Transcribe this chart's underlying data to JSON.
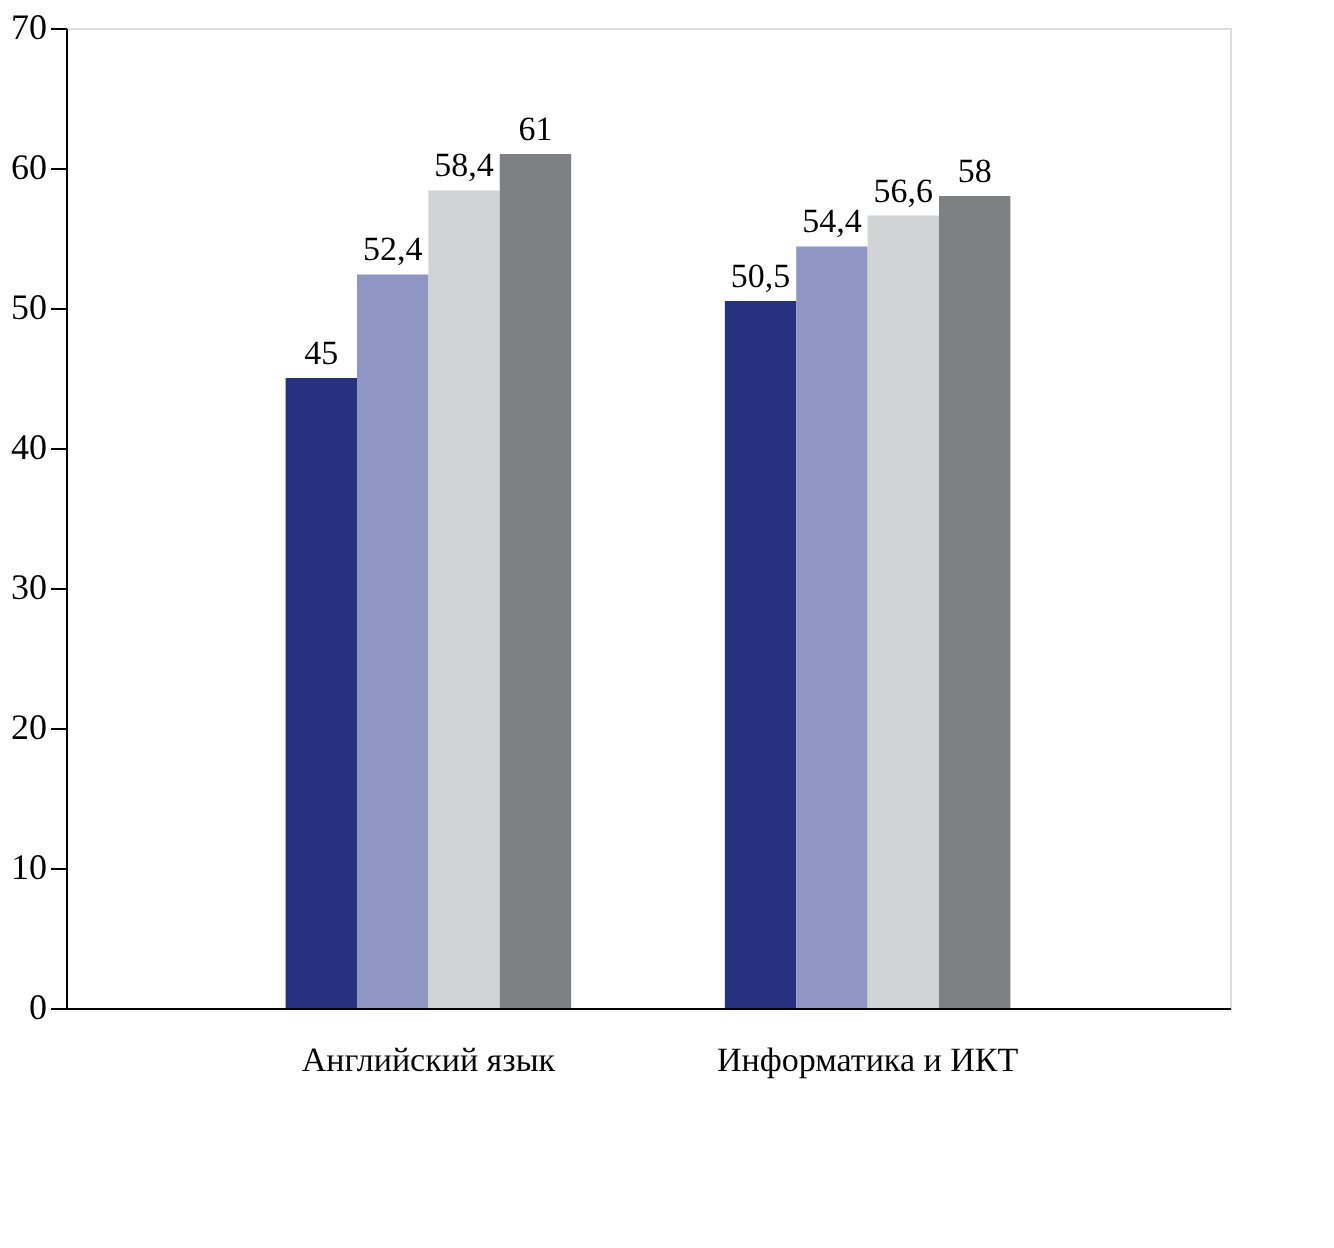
{
  "chart_data": {
    "type": "bar",
    "categories": [
      "Английский язык",
      "Информатика и ИКТ"
    ],
    "series": [
      {
        "color": "#263182",
        "values": [
          45,
          50.5
        ],
        "value_labels": [
          "45",
          "50,5"
        ]
      },
      {
        "color": "#8f96c3",
        "values": [
          52.4,
          54.4
        ],
        "value_labels": [
          "52,4",
          "54,4"
        ]
      },
      {
        "color": "#d1d2d4",
        "values": [
          58.4,
          56.6
        ],
        "value_labels": [
          "58,4",
          "56,6"
        ]
      },
      {
        "color": "#7f8083",
        "values": [
          61,
          58
        ],
        "value_labels": [
          "61",
          "58"
        ]
      }
    ],
    "ylim": [
      0,
      70
    ],
    "yticks": [
      0,
      10,
      20,
      30,
      40,
      50,
      60,
      70
    ],
    "grid": false
  }
}
